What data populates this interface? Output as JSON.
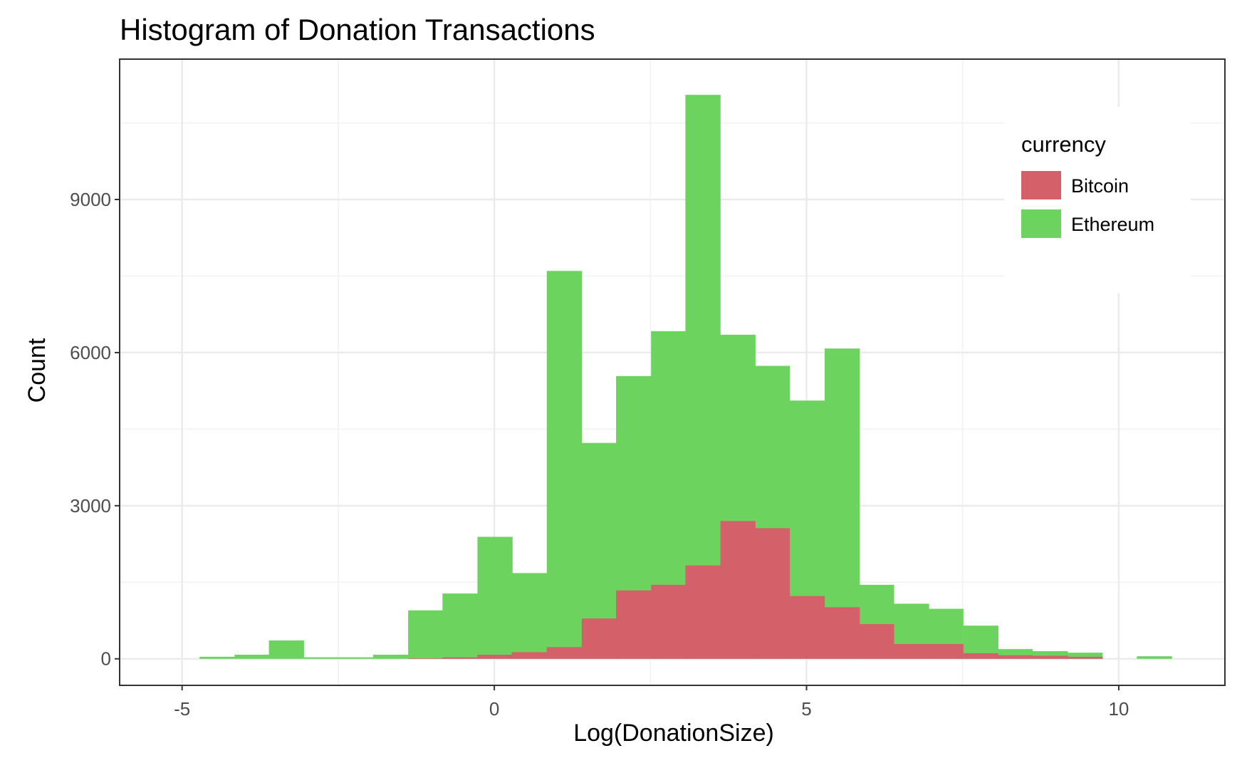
{
  "chart_data": {
    "type": "bar",
    "subtype": "histogram",
    "title": "Histogram of Donation Transactions",
    "xlabel": "Log(DonationSize)",
    "ylabel": "Count",
    "xlim": [
      -6.0,
      11.7
    ],
    "ylim": [
      -520,
      11750
    ],
    "xticks": [
      -5,
      0,
      5,
      10
    ],
    "xtick_labels": [
      "-5",
      "0",
      "5",
      "10"
    ],
    "yticks": [
      0,
      3000,
      6000,
      9000
    ],
    "ytick_labels": [
      "0",
      "3000",
      "6000",
      "9000"
    ],
    "grid": true,
    "legend": {
      "title": "currency",
      "placement": "top-right"
    },
    "bin_width": 0.556,
    "bin_starts": [
      -4.72,
      -4.16,
      -3.61,
      -3.05,
      -2.5,
      -1.94,
      -1.38,
      -0.83,
      -0.27,
      0.28,
      0.84,
      1.4,
      1.95,
      2.51,
      3.06,
      3.62,
      4.17,
      4.73,
      5.29,
      5.84,
      6.4,
      6.95,
      7.51,
      8.06,
      8.62,
      9.18,
      9.73,
      10.29
    ],
    "series": [
      {
        "name": "Ethereum",
        "color": "#6DD35F",
        "values": [
          40,
          80,
          360,
          30,
          30,
          80,
          950,
          1280,
          2390,
          1680,
          7600,
          4230,
          5540,
          6420,
          11050,
          6350,
          5740,
          5060,
          6080,
          1450,
          1080,
          980,
          650,
          190,
          150,
          120,
          0,
          50
        ]
      },
      {
        "name": "Bitcoin",
        "color": "#D4616A",
        "values": [
          0,
          0,
          0,
          0,
          0,
          0,
          10,
          30,
          80,
          130,
          230,
          790,
          1340,
          1450,
          1830,
          2700,
          2560,
          1230,
          1010,
          680,
          290,
          290,
          110,
          70,
          60,
          40,
          0,
          0
        ]
      }
    ]
  }
}
